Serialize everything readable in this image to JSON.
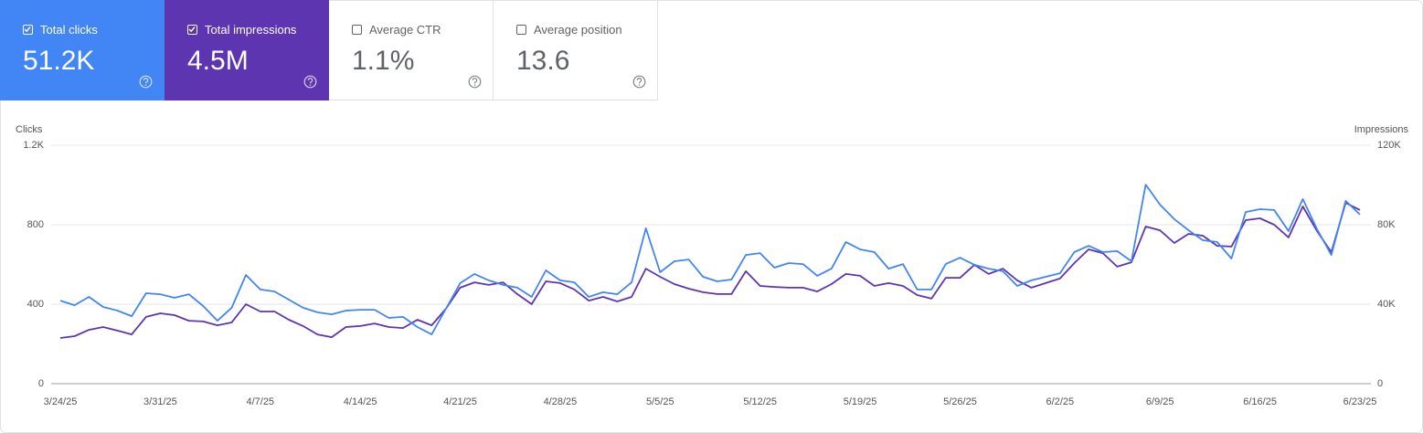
{
  "metrics": [
    {
      "label": "Total clicks",
      "value": "51.2K",
      "checked": true,
      "color": "#4285f4"
    },
    {
      "label": "Total impressions",
      "value": "4.5M",
      "checked": true,
      "color": "#5e35b1"
    },
    {
      "label": "Average CTR",
      "value": "1.1%",
      "checked": false
    },
    {
      "label": "Average position",
      "value": "13.6",
      "checked": false
    }
  ],
  "chart_data": {
    "type": "line",
    "y_label": "Clicks",
    "y2_label": "Impressions",
    "categories": [
      "3/24/25",
      null,
      null,
      null,
      null,
      null,
      null,
      "3/31/25",
      null,
      null,
      null,
      null,
      null,
      null,
      "4/7/25",
      null,
      null,
      null,
      null,
      null,
      null,
      "4/14/25",
      null,
      null,
      null,
      null,
      null,
      null,
      "4/21/25",
      null,
      null,
      null,
      null,
      null,
      null,
      "4/28/25",
      null,
      null,
      null,
      null,
      null,
      null,
      "5/5/25",
      null,
      null,
      null,
      null,
      null,
      null,
      "5/12/25",
      null,
      null,
      null,
      null,
      null,
      null,
      "5/19/25",
      null,
      null,
      null,
      null,
      null,
      null,
      "5/26/25",
      null,
      null,
      null,
      null,
      null,
      null,
      "6/2/25",
      null,
      null,
      null,
      null,
      null,
      null,
      "6/9/25",
      null,
      null,
      null,
      null,
      null,
      null,
      "6/16/25",
      null,
      null,
      null,
      null,
      null,
      null,
      "6/23/25"
    ],
    "series": [
      {
        "name": "Clicks",
        "color": "#4285f4",
        "axis": "y",
        "values": [
          418,
          395,
          437,
          386,
          368,
          340,
          455,
          450,
          432,
          450,
          391,
          317,
          382,
          547,
          474,
          464,
          423,
          382,
          359,
          349,
          368,
          372,
          372,
          331,
          336,
          285,
          248,
          377,
          506,
          552,
          520,
          497,
          483,
          437,
          570,
          520,
          510,
          437,
          460,
          450,
          510,
          782,
          561,
          616,
          625,
          538,
          515,
          524,
          648,
          657,
          584,
          607,
          602,
          543,
          579,
          713,
          676,
          662,
          579,
          602,
          474,
          474,
          602,
          634,
          598,
          579,
          566,
          492,
          520,
          538,
          556,
          662,
          694,
          662,
          667,
          616,
          1002,
          901,
          828,
          772,
          722,
          713,
          630,
          864,
          878,
          874,
          768,
          929,
          777,
          648,
          920,
          851
        ]
      },
      {
        "name": "Impressions",
        "color": "#5e35b1",
        "axis": "y2",
        "values": [
          23000,
          23900,
          27100,
          28500,
          26700,
          24800,
          33600,
          35400,
          34500,
          31700,
          31300,
          29400,
          30800,
          40000,
          36300,
          36300,
          32200,
          29000,
          24800,
          23400,
          28500,
          29000,
          30300,
          28500,
          28000,
          32200,
          29400,
          37700,
          48300,
          51000,
          49700,
          51000,
          45100,
          40000,
          51500,
          50600,
          47400,
          41800,
          43700,
          41400,
          43700,
          57900,
          53800,
          50100,
          47800,
          46000,
          45100,
          45100,
          56600,
          49200,
          48700,
          48300,
          48300,
          46400,
          50100,
          55200,
          54300,
          49200,
          50600,
          49200,
          44600,
          42800,
          53300,
          53300,
          59800,
          55200,
          57900,
          52000,
          48300,
          50600,
          52900,
          60700,
          67600,
          65700,
          58900,
          61100,
          79100,
          77200,
          70800,
          75400,
          74500,
          69400,
          69000,
          82300,
          83200,
          80000,
          73600,
          89200,
          76800,
          66200,
          91000,
          87400
        ]
      }
    ],
    "ylim": [
      0,
      1200
    ],
    "yticks": [
      0,
      400,
      800,
      {
        "value": 1200,
        "label": "1.2K"
      }
    ],
    "y2lim": [
      0,
      120000
    ],
    "y2ticks": [
      0,
      {
        "value": 40000,
        "label": "40K"
      },
      {
        "value": 80000,
        "label": "80K"
      },
      {
        "value": 120000,
        "label": "120K"
      }
    ],
    "grid": true
  }
}
